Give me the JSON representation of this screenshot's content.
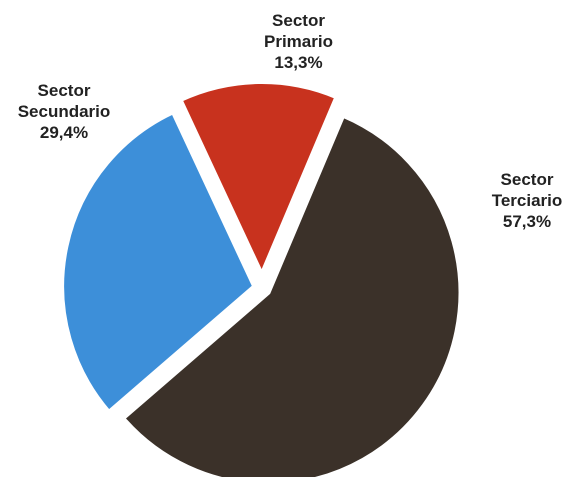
{
  "chart_data": {
    "type": "pie",
    "categories": [
      "Sector Primario",
      "Sector Terciario",
      "Sector Secundario"
    ],
    "values": [
      13.3,
      57.3,
      29.4
    ],
    "value_labels": [
      "13,3%",
      "57,3%",
      "29,4%"
    ],
    "colors": [
      "#c8321e",
      "#3b3129",
      "#3d8fd9"
    ]
  }
}
